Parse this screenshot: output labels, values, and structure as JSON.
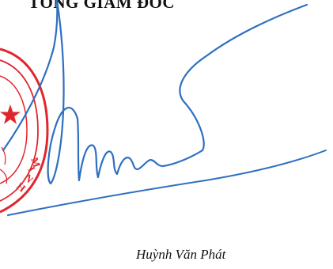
{
  "document": {
    "heading": "TỔNG GIÁM ĐỐC",
    "signer_name": "Huỳnh Văn Phát"
  },
  "seal": {
    "visible_letters": "MINH",
    "color": "#e0262c"
  },
  "signature": {
    "color": "#2f6fc0"
  }
}
